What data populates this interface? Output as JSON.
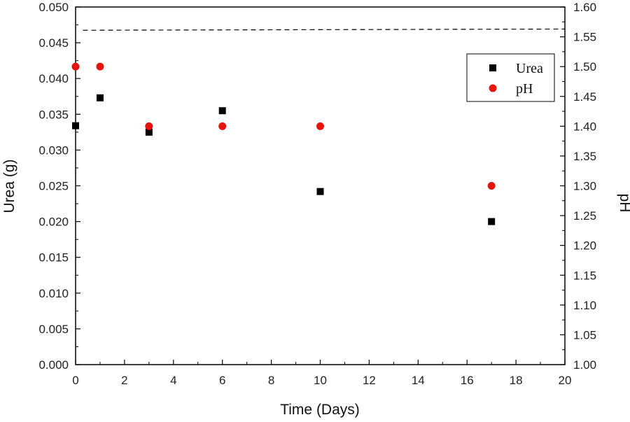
{
  "chart_data": {
    "type": "scatter",
    "xlabel": "Time (Days)",
    "ylabel": "Urea (g)",
    "y2label": "pH",
    "xlim": [
      0,
      20
    ],
    "ylim": [
      0,
      0.05
    ],
    "y2lim": [
      1.0,
      1.6
    ],
    "x_ticks": [
      "0",
      "2",
      "4",
      "6",
      "8",
      "10",
      "12",
      "14",
      "16",
      "18",
      "20"
    ],
    "y_ticks": [
      "0.000",
      "0.005",
      "0.010",
      "0.015",
      "0.020",
      "0.025",
      "0.030",
      "0.035",
      "0.040",
      "0.045",
      "0.050"
    ],
    "y2_ticks": [
      "1.00",
      "1.05",
      "1.10",
      "1.15",
      "1.20",
      "1.25",
      "1.30",
      "1.35",
      "1.40",
      "1.45",
      "1.50",
      "1.55",
      "1.60"
    ],
    "legend_position": "top-right",
    "grid": false,
    "series": [
      {
        "name": "Urea",
        "axis": "left",
        "marker": "square",
        "color": "#000000",
        "points": [
          {
            "x": 0,
            "y": 0.0334
          },
          {
            "x": 1,
            "y": 0.0373
          },
          {
            "x": 3,
            "y": 0.0325
          },
          {
            "x": 6,
            "y": 0.0355
          },
          {
            "x": 10,
            "y": 0.0242
          },
          {
            "x": 17,
            "y": 0.02
          }
        ]
      },
      {
        "name": "pH",
        "axis": "right",
        "marker": "circle",
        "color": "#e8120c",
        "points": [
          {
            "x": 0,
            "y": 1.5
          },
          {
            "x": 1,
            "y": 1.5
          },
          {
            "x": 3,
            "y": 1.4
          },
          {
            "x": 6,
            "y": 1.4
          },
          {
            "x": 10,
            "y": 1.4
          },
          {
            "x": 17,
            "y": 1.3
          }
        ]
      }
    ],
    "reference_line": {
      "style": "dashed",
      "axis": "right",
      "x": [
        0.3,
        20
      ],
      "y": [
        1.561,
        1.563
      ]
    }
  }
}
